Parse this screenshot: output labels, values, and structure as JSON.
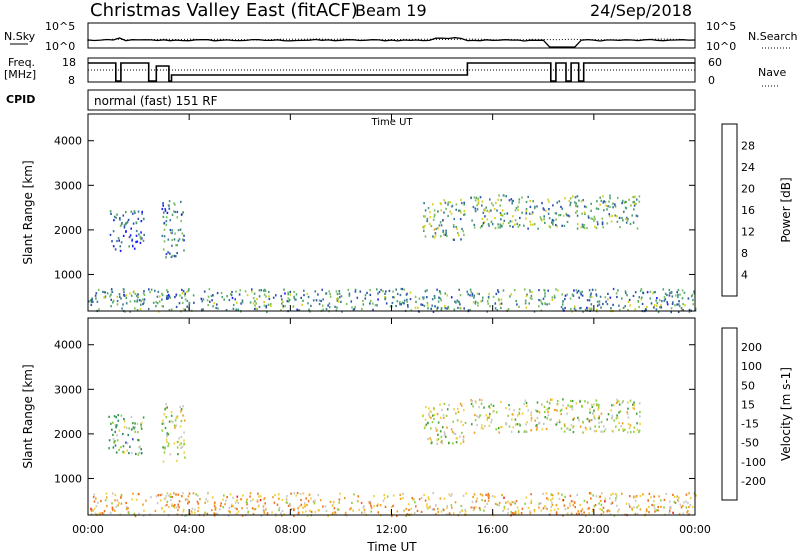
{
  "header": {
    "station": "Christmas Valley East (fitACF)",
    "beam": "Beam 19",
    "date": "24/Sep/2018"
  },
  "noise_panel": {
    "left_label": "N.Sky",
    "left_ticks": [
      "10^5",
      "10^0"
    ],
    "right_label": "N.Search",
    "right_ticks": [
      "10^5",
      "10^0"
    ]
  },
  "freq_panel": {
    "left_label_1": "Freq.",
    "left_label_2": "[MHz]",
    "left_ticks": [
      "18",
      "8"
    ],
    "right_label": "Nave",
    "right_ticks": [
      "60",
      "0"
    ]
  },
  "cpid": {
    "label": "CPID",
    "value": "normal (fast) 151 RF"
  },
  "colors": {
    "power_scale": [
      "#1a1aff",
      "#2a4fb0",
      "#3d7a96",
      "#4aa070",
      "#7ac060",
      "#d8d020",
      "#f0a020",
      "#f06020",
      "#e82020"
    ],
    "velocity_scale": [
      "#3050c8",
      "#2a8a6a",
      "#40a040",
      "#90d040",
      "#c8c8c8",
      "#f0d040",
      "#f0a020",
      "#f07020",
      "#e82020"
    ],
    "axis": "#000000"
  },
  "chart_data": [
    {
      "type": "heatmap",
      "title": "Power",
      "xlabel": "",
      "ylabel": "Slant Range [km]",
      "colorbar_label": "Power [dB]",
      "colorbar_ticks": [
        "28",
        "24",
        "20",
        "16",
        "12",
        "8",
        "4"
      ],
      "colorbar_range": [
        0,
        32
      ],
      "x_ticks": [
        "00:00",
        "04:00",
        "08:00",
        "12:00",
        "16:00",
        "20:00",
        "00:00"
      ],
      "x_range_hours": [
        0,
        24
      ],
      "y_ticks": [
        "1000",
        "2000",
        "3000",
        "4000"
      ],
      "ylim": [
        180,
        4600
      ],
      "x_title_top": "Time UT",
      "echo_regions": [
        {
          "t_start": 0.8,
          "t_end": 2.2,
          "r_start": 1550,
          "r_end": 2450,
          "level": 0.25
        },
        {
          "t_start": 2.9,
          "t_end": 3.8,
          "r_start": 1400,
          "r_end": 2700,
          "level": 0.3
        },
        {
          "t_start": 13.2,
          "t_end": 14.9,
          "r_start": 1800,
          "r_end": 2700,
          "level": 0.45
        },
        {
          "t_start": 15.1,
          "t_end": 21.8,
          "r_start": 2050,
          "r_end": 2800,
          "level": 0.4
        },
        {
          "t_start": 0.0,
          "t_end": 24.0,
          "r_start": 180,
          "r_end": 700,
          "level": 0.35
        }
      ]
    },
    {
      "type": "heatmap",
      "title": "Velocity",
      "xlabel": "Time UT",
      "ylabel": "Slant Range [km]",
      "colorbar_label": "Velocity [m s-1]",
      "colorbar_ticks": [
        "200",
        "100",
        "50",
        "15",
        "-15",
        "-50",
        "-100",
        "-200"
      ],
      "colorbar_range": [
        -250,
        250
      ],
      "x_ticks": [
        "00:00",
        "04:00",
        "08:00",
        "12:00",
        "16:00",
        "20:00",
        "00:00"
      ],
      "x_range_hours": [
        0,
        24
      ],
      "y_ticks": [
        "1000",
        "2000",
        "3000",
        "4000"
      ],
      "ylim": [
        180,
        4600
      ],
      "echo_regions": [
        {
          "t_start": 0.8,
          "t_end": 2.2,
          "r_start": 1550,
          "r_end": 2450,
          "level": 0.35
        },
        {
          "t_start": 2.9,
          "t_end": 3.8,
          "r_start": 1400,
          "r_end": 2700,
          "level": 0.5
        },
        {
          "t_start": 13.2,
          "t_end": 14.9,
          "r_start": 1800,
          "r_end": 2700,
          "level": 0.5
        },
        {
          "t_start": 15.1,
          "t_end": 21.8,
          "r_start": 2050,
          "r_end": 2800,
          "level": 0.5
        },
        {
          "t_start": 0.0,
          "t_end": 24.0,
          "r_start": 180,
          "r_end": 700,
          "level": 0.65
        }
      ]
    }
  ]
}
